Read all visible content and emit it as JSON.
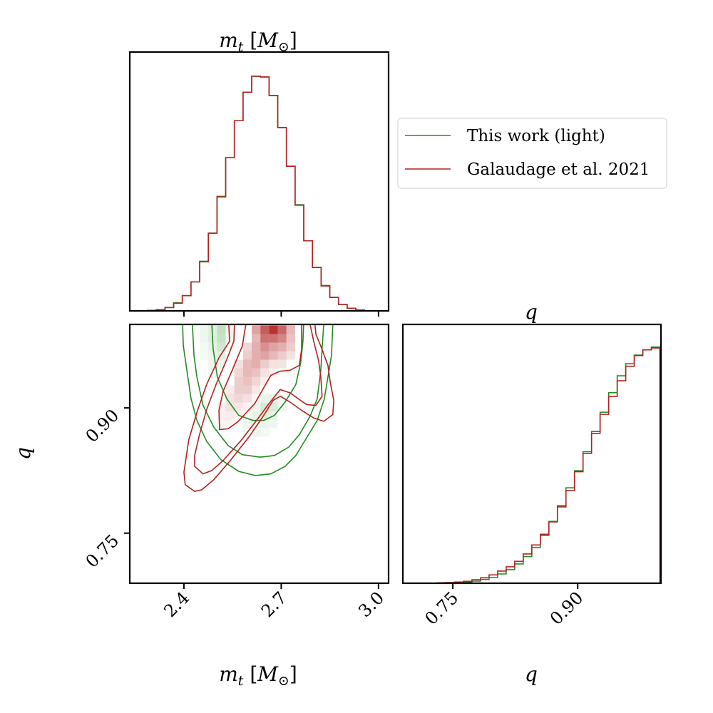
{
  "chart_data": {
    "type": "corner",
    "colors": {
      "this_work": "#228b22",
      "galaudage": "#b22222",
      "axes": "#000000",
      "legend_border": "#cccccc"
    },
    "legend": {
      "placement": "top-right",
      "entries": [
        {
          "label": "This work (light)",
          "color": "#228b22"
        },
        {
          "label": "Galaudage et al. 2021",
          "color": "#b22222"
        }
      ]
    },
    "params": {
      "mt": {
        "symbol": "m",
        "sub": "t",
        "open": " [",
        "unit": "M",
        "unit_sub": "⊙",
        "close": "]",
        "range": [
          2.233,
          3.031
        ],
        "ticks": [
          2.4,
          2.7,
          3.0
        ],
        "tick_labels": [
          "2.4",
          "2.7",
          "3.0"
        ]
      },
      "q": {
        "symbol": "q",
        "range": [
          0.69,
          1.0
        ],
        "ticks": [
          0.75,
          0.9
        ],
        "tick_labels": [
          "0.75",
          "0.90"
        ]
      }
    },
    "hist_mt": {
      "type": "step-histogram",
      "bin_start": 2.288,
      "bin_width": 0.02675,
      "ylim": [
        0,
        1.09
      ],
      "series": [
        {
          "key": "this_work",
          "values": [
            0.002,
            0.005,
            0.014,
            0.034,
            0.064,
            0.122,
            0.209,
            0.327,
            0.482,
            0.645,
            0.801,
            0.921,
            0.988,
            0.985,
            0.907,
            0.772,
            0.609,
            0.447,
            0.295,
            0.183,
            0.107,
            0.057,
            0.027,
            0.011,
            0.004
          ]
        },
        {
          "key": "galaudage",
          "values": [
            0.002,
            0.005,
            0.014,
            0.032,
            0.064,
            0.122,
            0.207,
            0.327,
            0.48,
            0.645,
            0.801,
            0.921,
            0.988,
            0.985,
            0.907,
            0.772,
            0.609,
            0.445,
            0.295,
            0.183,
            0.105,
            0.057,
            0.027,
            0.011,
            0.003
          ]
        }
      ]
    },
    "hist_q": {
      "type": "step-histogram",
      "bin_start": 0.732,
      "bin_width": 0.01026,
      "ylim": [
        0,
        1.088
      ],
      "series": [
        {
          "key": "this_work",
          "values": [
            0.001,
            0.003,
            0.003,
            0.005,
            0.009,
            0.016,
            0.024,
            0.039,
            0.057,
            0.081,
            0.112,
            0.15,
            0.201,
            0.26,
            0.326,
            0.401,
            0.473,
            0.553,
            0.638,
            0.719,
            0.801,
            0.872,
            0.923,
            0.959,
            0.981,
            0.993
          ]
        },
        {
          "key": "galaudage",
          "values": [
            0.002,
            0.003,
            0.005,
            0.008,
            0.015,
            0.023,
            0.035,
            0.051,
            0.069,
            0.092,
            0.123,
            0.161,
            0.206,
            0.258,
            0.321,
            0.389,
            0.469,
            0.546,
            0.63,
            0.71,
            0.785,
            0.851,
            0.912,
            0.957,
            0.981,
            0.989
          ]
        }
      ]
    },
    "joint": {
      "type": "heatmap+contour",
      "heatmap_bins": {
        "mt_start": 2.288,
        "mt_width": 0.02675,
        "q_start": 0.732,
        "q_width": 0.01026
      },
      "heatmap_cells": {
        "galaudage": [
          [
            12,
            25,
            0.45
          ],
          [
            13,
            25,
            0.8
          ],
          [
            14,
            25,
            1.0
          ],
          [
            15,
            25,
            0.75
          ],
          [
            16,
            25,
            0.35
          ],
          [
            12,
            24,
            0.35
          ],
          [
            13,
            24,
            0.7
          ],
          [
            14,
            24,
            0.7
          ],
          [
            15,
            24,
            0.6
          ],
          [
            16,
            24,
            0.3
          ],
          [
            11,
            23,
            0.2
          ],
          [
            12,
            23,
            0.4
          ],
          [
            13,
            23,
            0.55
          ],
          [
            14,
            23,
            0.45
          ],
          [
            15,
            23,
            0.4
          ],
          [
            16,
            23,
            0.25
          ],
          [
            11,
            22,
            0.25
          ],
          [
            12,
            22,
            0.4
          ],
          [
            13,
            22,
            0.45
          ],
          [
            14,
            22,
            0.35
          ],
          [
            15,
            22,
            0.25
          ],
          [
            16,
            22,
            0.15
          ],
          [
            10,
            21,
            0.15
          ],
          [
            11,
            21,
            0.35
          ],
          [
            12,
            21,
            0.4
          ],
          [
            13,
            21,
            0.25
          ],
          [
            14,
            21,
            0.15
          ],
          [
            15,
            21,
            0.1
          ],
          [
            10,
            20,
            0.2
          ],
          [
            11,
            20,
            0.35
          ],
          [
            12,
            20,
            0.3
          ],
          [
            13,
            20,
            0.15
          ],
          [
            14,
            20,
            0.08
          ],
          [
            10,
            19,
            0.25
          ],
          [
            11,
            19,
            0.3
          ],
          [
            12,
            19,
            0.2
          ],
          [
            13,
            19,
            0.08
          ],
          [
            9,
            18,
            0.1
          ],
          [
            10,
            18,
            0.25
          ],
          [
            11,
            18,
            0.25
          ],
          [
            12,
            18,
            0.12
          ],
          [
            9,
            17,
            0.15
          ],
          [
            10,
            17,
            0.2
          ],
          [
            11,
            17,
            0.15
          ],
          [
            12,
            17,
            0.05
          ],
          [
            8,
            16,
            0.08
          ],
          [
            9,
            16,
            0.15
          ],
          [
            10,
            16,
            0.12
          ],
          [
            11,
            16,
            0.06
          ],
          [
            8,
            15,
            0.08
          ],
          [
            9,
            15,
            0.1
          ],
          [
            10,
            15,
            0.06
          ],
          [
            8,
            14,
            0.05
          ],
          [
            9,
            14,
            0.06
          ]
        ],
        "this_work": [
          [
            6,
            25,
            0.08
          ],
          [
            7,
            25,
            0.15
          ],
          [
            8,
            25,
            0.3
          ],
          [
            9,
            25,
            0.1
          ],
          [
            6,
            24,
            0.08
          ],
          [
            7,
            24,
            0.15
          ],
          [
            8,
            24,
            0.28
          ],
          [
            9,
            24,
            0.08
          ],
          [
            6,
            23,
            0.06
          ],
          [
            7,
            23,
            0.12
          ],
          [
            8,
            23,
            0.22
          ],
          [
            9,
            23,
            0.06
          ],
          [
            6,
            22,
            0.05
          ],
          [
            7,
            22,
            0.1
          ],
          [
            8,
            22,
            0.15
          ],
          [
            7,
            21,
            0.08
          ],
          [
            8,
            21,
            0.1
          ],
          [
            15,
            21,
            0.05
          ],
          [
            7,
            20,
            0.06
          ],
          [
            16,
            20,
            0.05
          ],
          [
            13,
            17,
            0.1
          ],
          [
            14,
            17,
            0.12
          ],
          [
            15,
            17,
            0.06
          ],
          [
            12,
            16,
            0.1
          ],
          [
            13,
            16,
            0.2
          ],
          [
            14,
            16,
            0.18
          ],
          [
            15,
            16,
            0.08
          ],
          [
            11,
            15,
            0.06
          ],
          [
            12,
            15,
            0.12
          ],
          [
            13,
            15,
            0.15
          ],
          [
            14,
            15,
            0.12
          ],
          [
            11,
            14,
            0.08
          ],
          [
            12,
            14,
            0.1
          ],
          [
            13,
            14,
            0.1
          ],
          [
            14,
            14,
            0.08
          ],
          [
            11,
            13,
            0.06
          ],
          [
            12,
            13,
            0.08
          ],
          [
            13,
            13,
            0.06
          ]
        ]
      },
      "contours": [
        {
          "key": "this_work",
          "points": [
            [
              2.396,
              1.001
            ],
            [
              2.398,
              0.975
            ],
            [
              2.409,
              0.945
            ],
            [
              2.422,
              0.911
            ],
            [
              2.44,
              0.885
            ],
            [
              2.47,
              0.86
            ],
            [
              2.514,
              0.838
            ],
            [
              2.569,
              0.824
            ],
            [
              2.62,
              0.819
            ],
            [
              2.668,
              0.821
            ],
            [
              2.712,
              0.83
            ],
            [
              2.745,
              0.843
            ],
            [
              2.778,
              0.864
            ],
            [
              2.811,
              0.885
            ],
            [
              2.833,
              0.911
            ],
            [
              2.844,
              0.937
            ],
            [
              2.855,
              0.963
            ],
            [
              2.859,
              1.001
            ]
          ]
        },
        {
          "key": "this_work",
          "points": [
            [
              2.426,
              1.001
            ],
            [
              2.431,
              0.963
            ],
            [
              2.44,
              0.937
            ],
            [
              2.459,
              0.903
            ],
            [
              2.492,
              0.877
            ],
            [
              2.536,
              0.855
            ],
            [
              2.58,
              0.844
            ],
            [
              2.635,
              0.841
            ],
            [
              2.679,
              0.843
            ],
            [
              2.723,
              0.853
            ],
            [
              2.756,
              0.868
            ],
            [
              2.789,
              0.89
            ],
            [
              2.811,
              0.911
            ],
            [
              2.822,
              0.945
            ],
            [
              2.826,
              0.971
            ],
            [
              2.831,
              1.001
            ]
          ]
        },
        {
          "key": "this_work",
          "points": [
            [
              2.486,
              1.001
            ],
            [
              2.49,
              0.971
            ],
            [
              2.503,
              0.937
            ],
            [
              2.532,
              0.911
            ],
            [
              2.569,
              0.891
            ],
            [
              2.613,
              0.885
            ],
            [
              2.646,
              0.885
            ],
            [
              2.679,
              0.891
            ],
            [
              2.712,
              0.907
            ],
            [
              2.745,
              0.928
            ],
            [
              2.76,
              0.954
            ],
            [
              2.767,
              0.98
            ],
            [
              2.769,
              1.001
            ]
          ]
        },
        {
          "key": "galaudage",
          "points": [
            [
              2.538,
              1.001
            ],
            [
              2.541,
              0.98
            ],
            [
              2.508,
              0.96
            ],
            [
              2.47,
              0.928
            ],
            [
              2.442,
              0.897
            ],
            [
              2.415,
              0.862
            ],
            [
              2.4,
              0.823
            ],
            [
              2.404,
              0.808
            ],
            [
              2.433,
              0.8
            ],
            [
              2.455,
              0.802
            ],
            [
              2.492,
              0.814
            ],
            [
              2.543,
              0.837
            ],
            [
              2.602,
              0.866
            ],
            [
              2.646,
              0.891
            ],
            [
              2.675,
              0.909
            ],
            [
              2.697,
              0.914
            ],
            [
              2.727,
              0.907
            ],
            [
              2.763,
              0.897
            ],
            [
              2.8,
              0.888
            ],
            [
              2.831,
              0.884
            ],
            [
              2.859,
              0.892
            ],
            [
              2.862,
              0.909
            ],
            [
              2.851,
              0.931
            ],
            [
              2.844,
              0.951
            ],
            [
              2.822,
              0.974
            ],
            [
              2.807,
              0.988
            ],
            [
              2.804,
              1.001
            ]
          ]
        },
        {
          "key": "galaudage",
          "points": [
            [
              2.556,
              1.001
            ],
            [
              2.554,
              0.98
            ],
            [
              2.532,
              0.958
            ],
            [
              2.499,
              0.928
            ],
            [
              2.47,
              0.898
            ],
            [
              2.448,
              0.868
            ],
            [
              2.433,
              0.843
            ],
            [
              2.433,
              0.83
            ],
            [
              2.459,
              0.821
            ],
            [
              2.486,
              0.825
            ],
            [
              2.521,
              0.837
            ],
            [
              2.574,
              0.86
            ],
            [
              2.624,
              0.885
            ],
            [
              2.662,
              0.905
            ],
            [
              2.697,
              0.922
            ],
            [
              2.727,
              0.918
            ],
            [
              2.778,
              0.904
            ],
            [
              2.807,
              0.903
            ],
            [
              2.826,
              0.914
            ],
            [
              2.822,
              0.937
            ],
            [
              2.815,
              0.957
            ],
            [
              2.8,
              0.98
            ],
            [
              2.789,
              1.001
            ]
          ]
        },
        {
          "key": "galaudage",
          "points": [
            [
              2.591,
              1.001
            ],
            [
              2.58,
              0.974
            ],
            [
              2.552,
              0.948
            ],
            [
              2.521,
              0.92
            ],
            [
              2.508,
              0.897
            ],
            [
              2.51,
              0.874
            ],
            [
              2.536,
              0.875
            ],
            [
              2.565,
              0.883
            ],
            [
              2.618,
              0.905
            ],
            [
              2.668,
              0.939
            ],
            [
              2.697,
              0.944
            ],
            [
              2.727,
              0.945
            ],
            [
              2.756,
              0.951
            ],
            [
              2.763,
              0.971
            ],
            [
              2.763,
              1.001
            ]
          ]
        }
      ]
    }
  }
}
